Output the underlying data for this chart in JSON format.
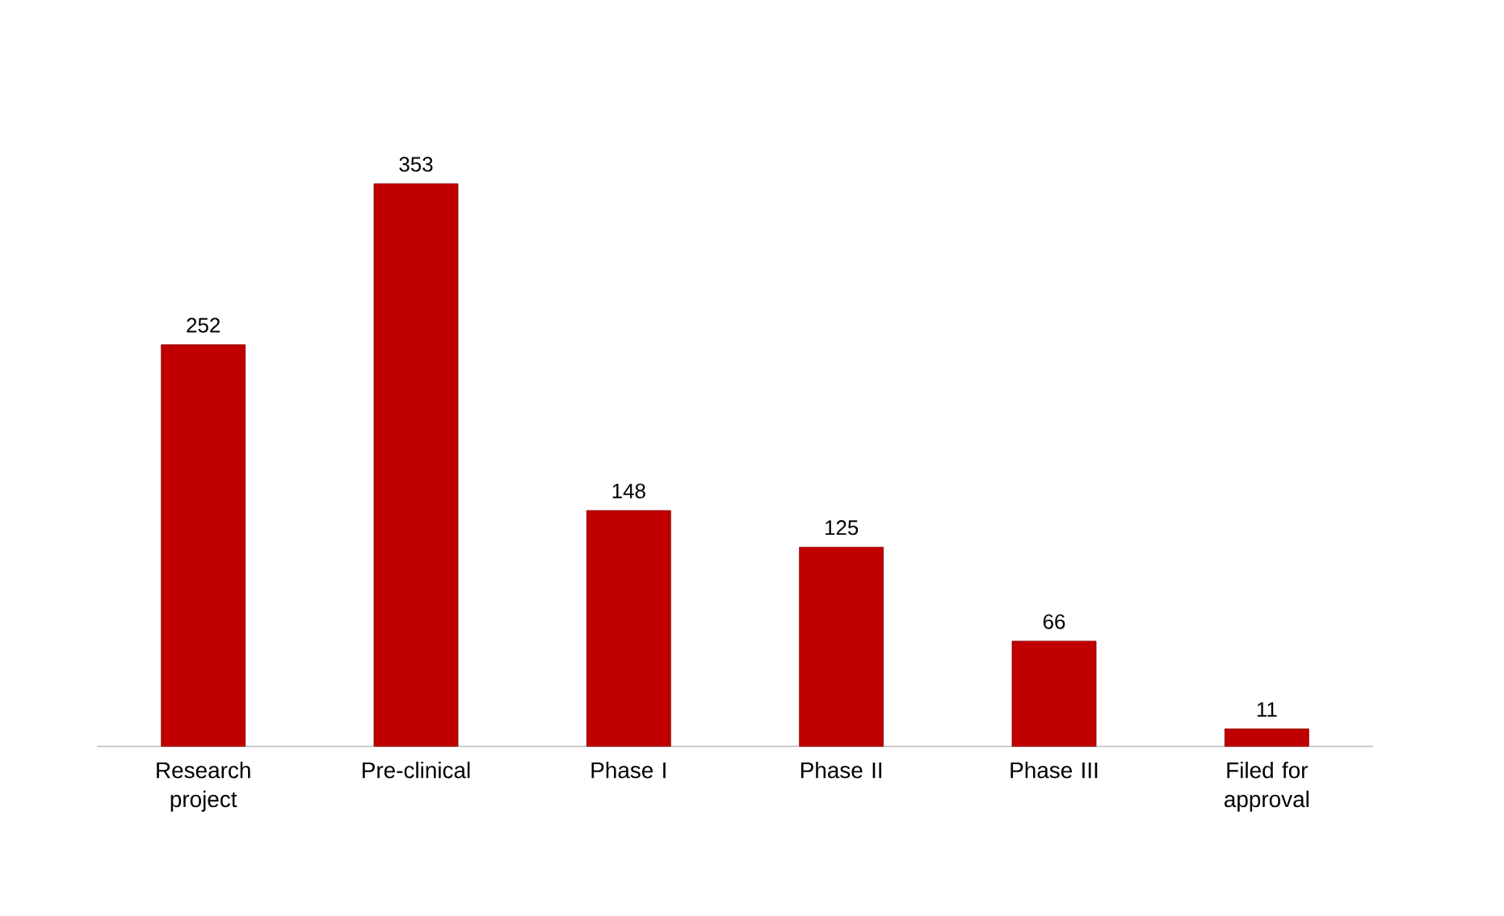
{
  "chart_data": {
    "type": "bar",
    "categories": [
      "Research project",
      "Pre-clinical",
      "Phase I",
      "Phase II",
      "Phase III",
      "Filed for approval"
    ],
    "values": [
      252,
      353,
      148,
      125,
      66,
      11
    ],
    "color": "#c00000",
    "data_labels": true
  }
}
